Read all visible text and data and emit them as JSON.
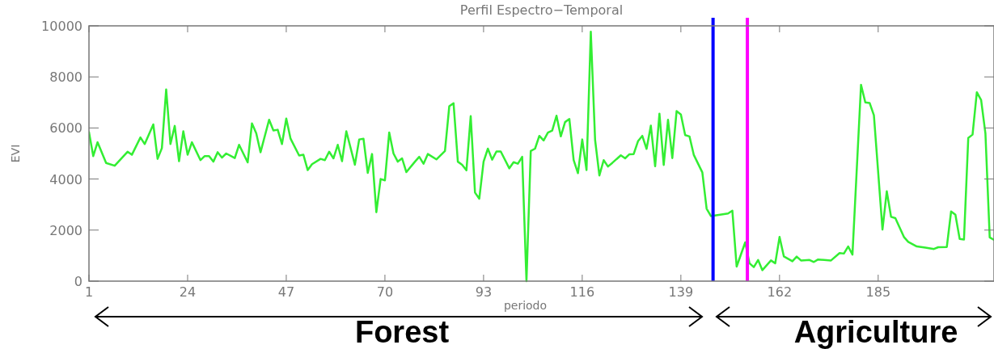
{
  "chart_data": {
    "type": "line",
    "title": "Perfil Espectro−Temporal",
    "xlabel": "periodo",
    "ylabel": "EVI",
    "xlim": [
      1,
      212
    ],
    "xticks": [
      1,
      24,
      47,
      70,
      93,
      116,
      139,
      162,
      185
    ],
    "ylim": [
      0,
      10000
    ],
    "yticks": [
      0,
      2000,
      4000,
      6000,
      8000,
      10000
    ],
    "marker": "none",
    "line_style": "solid",
    "series": [
      {
        "color": "#33ee33",
        "x": [
          1,
          2,
          3,
          5,
          7,
          10,
          11,
          13,
          14,
          16,
          17,
          18,
          19,
          20,
          21,
          22,
          23,
          24,
          25,
          27,
          28,
          29,
          30,
          31,
          32,
          33,
          35,
          36,
          38,
          39,
          40,
          41,
          43,
          44,
          45,
          46,
          47,
          48,
          50,
          51,
          52,
          53,
          55,
          56,
          57,
          58,
          59,
          60,
          61,
          63,
          64,
          65,
          66,
          67,
          68,
          69,
          70,
          71,
          72,
          73,
          74,
          75,
          77,
          78,
          79,
          80,
          82,
          84,
          85,
          86,
          87,
          88,
          89,
          90,
          91,
          92,
          93,
          94,
          95,
          96,
          97,
          99,
          100,
          101,
          102,
          103,
          104,
          105,
          106,
          107,
          108,
          109,
          110,
          111,
          112,
          113,
          114,
          115,
          116,
          117,
          118,
          119,
          120,
          121,
          122,
          123,
          125,
          126,
          127,
          128,
          129,
          130,
          131,
          132,
          133,
          134,
          135,
          136,
          137,
          138,
          139,
          140,
          141,
          142,
          144,
          145,
          146,
          150,
          151,
          152,
          154,
          155,
          156,
          157,
          158,
          160,
          161,
          162,
          163,
          165,
          166,
          167,
          169,
          170,
          171,
          174,
          176,
          177,
          178,
          179,
          181,
          182,
          183,
          184,
          186,
          187,
          188,
          189,
          191,
          192,
          194,
          196,
          198,
          199,
          201,
          202,
          203,
          204,
          205,
          206,
          207,
          208,
          209,
          210,
          211,
          212
        ],
        "values": [
          5840,
          4900,
          5440,
          4630,
          4520,
          5070,
          4950,
          5630,
          5370,
          6140,
          4790,
          5210,
          7510,
          5370,
          6080,
          4700,
          5870,
          4950,
          5440,
          4740,
          4900,
          4900,
          4680,
          5050,
          4840,
          5000,
          4820,
          5340,
          4650,
          6180,
          5790,
          5050,
          6320,
          5900,
          5930,
          5370,
          6370,
          5580,
          4920,
          4950,
          4350,
          4580,
          4790,
          4740,
          5070,
          4810,
          5340,
          4700,
          5870,
          4560,
          5550,
          5580,
          4240,
          4980,
          2700,
          4000,
          3950,
          5820,
          5000,
          4680,
          4810,
          4270,
          4680,
          4870,
          4600,
          4980,
          4770,
          5100,
          6850,
          6970,
          4680,
          4560,
          4340,
          6460,
          3470,
          3230,
          4680,
          5190,
          4760,
          5080,
          5080,
          4420,
          4660,
          4600,
          4870,
          0,
          5100,
          5190,
          5690,
          5510,
          5820,
          5900,
          6480,
          5670,
          6230,
          6350,
          4740,
          4230,
          5550,
          4350,
          9770,
          5530,
          4140,
          4740,
          4490,
          4630,
          4930,
          4810,
          4970,
          4980,
          5480,
          5690,
          5180,
          6090,
          4500,
          6560,
          4550,
          6320,
          4820,
          6660,
          6530,
          5720,
          5670,
          4950,
          4260,
          2840,
          2550,
          2650,
          2760,
          570,
          1520,
          700,
          550,
          830,
          430,
          810,
          700,
          1730,
          970,
          780,
          960,
          810,
          830,
          750,
          850,
          810,
          1100,
          1080,
          1360,
          1040,
          7690,
          7000,
          6980,
          6500,
          2020,
          3520,
          2520,
          2470,
          1730,
          1540,
          1360,
          1310,
          1260,
          1330,
          1340,
          2730,
          2600,
          1650,
          1630,
          5610,
          5740,
          7400,
          7090,
          5790,
          1710,
          1620
        ]
      }
    ],
    "ref_lines": [
      {
        "axis": "x",
        "value": 146.5,
        "color": "#0000ff",
        "line_style": "solid"
      },
      {
        "axis": "x",
        "value": 154.5,
        "color": "#ff00ff",
        "line_style": "solid"
      }
    ],
    "annotations": [
      "Forest",
      "Agriculture"
    ]
  }
}
